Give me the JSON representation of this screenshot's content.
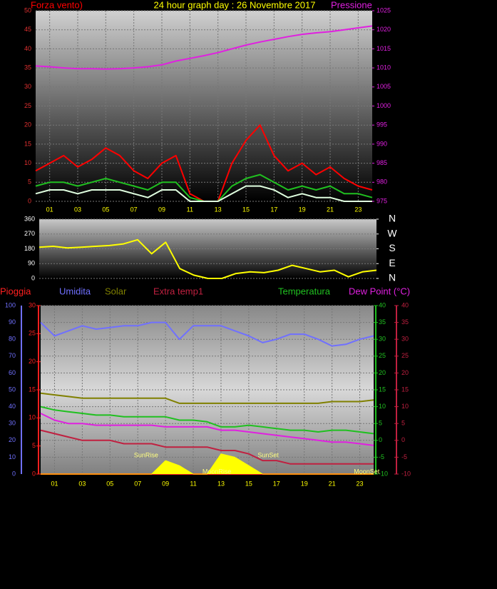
{
  "chart_data": [
    {
      "type": "line",
      "title": "24 hour graph day : 26 Novembre 2017",
      "title_color": "#ffff00",
      "x": [
        0,
        1,
        2,
        3,
        4,
        5,
        6,
        7,
        8,
        9,
        10,
        11,
        12,
        13,
        14,
        15,
        16,
        17,
        18,
        19,
        20,
        21,
        22,
        23,
        24
      ],
      "xlim": [
        0,
        24
      ],
      "xticks": [
        {
          "value": 1,
          "label": "01"
        },
        {
          "value": 3,
          "label": "03"
        },
        {
          "value": 5,
          "label": "05"
        },
        {
          "value": 7,
          "label": "07"
        },
        {
          "value": 9,
          "label": "09"
        },
        {
          "value": 11,
          "label": "11"
        },
        {
          "value": 13,
          "label": "13"
        },
        {
          "value": 15,
          "label": "15"
        },
        {
          "value": 17,
          "label": "17"
        },
        {
          "value": 19,
          "label": "19"
        },
        {
          "value": 21,
          "label": "21"
        },
        {
          "value": 23,
          "label": "23"
        }
      ],
      "xtick_color": "#ffff00",
      "ylim": [
        0,
        50
      ],
      "yticks": [
        0,
        5,
        10,
        15,
        20,
        25,
        30,
        35,
        40,
        45,
        50
      ],
      "y_color": "#e03030",
      "y2lim": [
        975,
        1025
      ],
      "y2ticks": [
        975,
        980,
        985,
        990,
        995,
        1000,
        1005,
        1010,
        1015,
        1020,
        1025
      ],
      "y2_color": "#e020e0",
      "grid": true,
      "series": [
        {
          "name": "Forza vento)",
          "color": "#ff0000",
          "values": [
            8,
            10,
            12,
            9,
            11,
            14,
            12,
            8,
            6,
            10,
            12,
            2,
            0,
            0,
            10,
            16,
            20,
            12,
            8,
            10,
            7,
            9,
            6,
            4,
            3
          ]
        },
        {
          "color": "#20c020",
          "values": [
            4,
            5,
            5,
            4,
            5,
            6,
            5,
            4,
            3,
            5,
            5,
            1,
            0,
            0,
            4,
            6,
            7,
            5,
            3,
            4,
            3,
            4,
            2,
            2,
            1
          ]
        },
        {
          "color": "#e0ffe0",
          "values": [
            2,
            3,
            3,
            2,
            3,
            3,
            3,
            2,
            1,
            3,
            3,
            0,
            0,
            0,
            2,
            4,
            4,
            3,
            1,
            2,
            1,
            1,
            0,
            0,
            0
          ]
        },
        {
          "name": "Pressione",
          "color": "#e020e0",
          "axis": "y2",
          "values": [
            1010.5,
            1010.3,
            1010,
            1009.8,
            1009.8,
            1009.7,
            1009.8,
            1010,
            1010.3,
            1010.8,
            1011.8,
            1012.5,
            1013.2,
            1014,
            1015,
            1016,
            1016.8,
            1017.5,
            1018.2,
            1018.8,
            1019.2,
            1019.5,
            1020,
            1020.5,
            1021
          ]
        }
      ]
    },
    {
      "type": "line",
      "x": [
        0,
        1,
        2,
        3,
        4,
        5,
        6,
        7,
        8,
        9,
        10,
        11,
        12,
        13,
        14,
        15,
        16,
        17,
        18,
        19,
        20,
        21,
        22,
        23,
        24
      ],
      "xlim": [
        0,
        24
      ],
      "ylim": [
        0,
        360
      ],
      "yticks": [
        0,
        90,
        180,
        270,
        360
      ],
      "y_color": "#ffffff",
      "y2lim": [
        0,
        360
      ],
      "y2ticks": [
        {
          "value": 0,
          "label": "N"
        },
        {
          "value": 90,
          "label": "E"
        },
        {
          "value": 180,
          "label": "S"
        },
        {
          "value": 270,
          "label": "W"
        },
        {
          "value": 360,
          "label": "N"
        }
      ],
      "y2_color": "#ffffff",
      "grid": true,
      "series": [
        {
          "color": "#ffff00",
          "values": [
            190,
            195,
            185,
            190,
            195,
            200,
            210,
            235,
            150,
            220,
            60,
            20,
            0,
            0,
            30,
            40,
            35,
            50,
            80,
            60,
            40,
            50,
            10,
            40,
            50
          ]
        }
      ]
    },
    {
      "type": "line",
      "x": [
        0,
        1,
        2,
        3,
        4,
        5,
        6,
        7,
        8,
        9,
        10,
        11,
        12,
        13,
        14,
        15,
        16,
        17,
        18,
        19,
        20,
        21,
        22,
        23,
        24
      ],
      "xlim": [
        0,
        24
      ],
      "xticks": [
        {
          "value": 1,
          "label": "01"
        },
        {
          "value": 3,
          "label": "03"
        },
        {
          "value": 5,
          "label": "05"
        },
        {
          "value": 7,
          "label": "07"
        },
        {
          "value": 9,
          "label": "09"
        },
        {
          "value": 11,
          "label": "11"
        },
        {
          "value": 13,
          "label": "13"
        },
        {
          "value": 15,
          "label": "15"
        },
        {
          "value": 17,
          "label": "17"
        },
        {
          "value": 19,
          "label": "19"
        },
        {
          "value": 21,
          "label": "21"
        },
        {
          "value": 23,
          "label": "23"
        }
      ],
      "xtick_color": "#ffff00",
      "ylim": [
        0,
        100
      ],
      "yticks": [
        0,
        10,
        20,
        30,
        40,
        50,
        60,
        70,
        80,
        90,
        100
      ],
      "y_color": "#7070ff",
      "y3lim": [
        0,
        30
      ],
      "y3ticks": [
        0,
        5,
        10,
        15,
        20,
        25,
        30
      ],
      "y3_color": "#ff2020",
      "y2lim": [
        -10,
        40
      ],
      "y2ticks": [
        -10,
        -5,
        0,
        5,
        10,
        15,
        20,
        25,
        30,
        35,
        40
      ],
      "y2_color": "#20c020",
      "y4lim": [
        -10,
        40
      ],
      "y4ticks": [
        -10,
        -5,
        0,
        5,
        10,
        15,
        20,
        25,
        30,
        35,
        40
      ],
      "y4_color": "#c02040",
      "grid": true,
      "series": [
        {
          "name": "Pioggia",
          "color": "#ff2020",
          "axis": "y3",
          "values": [
            0,
            0,
            0,
            0,
            0,
            0,
            0,
            0,
            0,
            0,
            0,
            0,
            0,
            0,
            0,
            0,
            0,
            0,
            0,
            0,
            0,
            0,
            0,
            0,
            0
          ]
        },
        {
          "name": "Umidita",
          "color": "#7070ff",
          "values": [
            90,
            82,
            85,
            88,
            86,
            87,
            88,
            88,
            90,
            90,
            80,
            88,
            88,
            88,
            85,
            82,
            78,
            80,
            83,
            83,
            80,
            76,
            77,
            80,
            82
          ]
        },
        {
          "name": "Solar",
          "color": "#808000",
          "values": [
            48,
            47,
            46,
            45,
            45,
            45,
            45,
            45,
            45,
            45,
            42,
            42,
            42,
            42,
            42,
            42,
            42,
            42,
            42,
            42,
            42,
            43,
            43,
            43,
            44
          ]
        },
        {
          "name": "Extra temp1",
          "color": "#c02040",
          "axis": "y4",
          "values": [
            3,
            2,
            1,
            0,
            0,
            0,
            -1,
            -1,
            -1,
            -2,
            -2,
            -2,
            -2,
            -3,
            -3,
            -4,
            -6,
            -6,
            -7,
            -7,
            -7,
            -7,
            -7,
            -7,
            -7
          ]
        },
        {
          "name": "Temperatura",
          "color": "#20c020",
          "axis": "y2",
          "values": [
            10,
            9,
            8.5,
            8,
            7.5,
            7.5,
            7,
            7,
            7,
            7,
            6,
            6,
            5.5,
            4,
            4,
            4.5,
            4,
            3.5,
            3,
            3,
            2.5,
            3,
            3,
            2.5,
            2
          ]
        },
        {
          "name": "Dew Point (°C)",
          "color": "#e020e0",
          "axis": "y2",
          "values": [
            8,
            6,
            5,
            5,
            4.5,
            4.5,
            4.5,
            4.5,
            4.5,
            4,
            4,
            4,
            4,
            3,
            3,
            2.5,
            2,
            1.5,
            1,
            0.5,
            0,
            -0.5,
            -0.5,
            -1,
            -1.5
          ]
        },
        {
          "color": "#ffff00",
          "area": true,
          "values": [
            0,
            0,
            0,
            0,
            0,
            0,
            0,
            0,
            0,
            8,
            5,
            0,
            0,
            12,
            10,
            5,
            0,
            0,
            0,
            0,
            0,
            0,
            0,
            0,
            0
          ]
        }
      ],
      "annotations": [
        {
          "text": "SunRise",
          "x": 7.6
        },
        {
          "text": "MoonRise",
          "x": 12.7
        },
        {
          "text": "SunSet",
          "x": 16.4
        },
        {
          "text": "MoonSet",
          "x": 23.5
        }
      ],
      "annotation_color": "#ffff80"
    }
  ]
}
